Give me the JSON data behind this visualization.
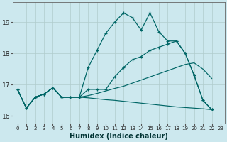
{
  "xlabel": "Humidex (Indice chaleur)",
  "background_color": "#cce8ee",
  "grid_color": "#b0cccc",
  "line_color": "#006666",
  "xlim": [
    -0.5,
    23.5
  ],
  "ylim": [
    15.75,
    19.65
  ],
  "yticks": [
    16,
    17,
    18,
    19
  ],
  "xticks": [
    0,
    1,
    2,
    3,
    4,
    5,
    6,
    7,
    8,
    9,
    10,
    11,
    12,
    13,
    14,
    15,
    16,
    17,
    18,
    19,
    20,
    21,
    22,
    23
  ],
  "s1": [
    16.85,
    16.25,
    16.6,
    16.7,
    16.9,
    16.6,
    16.6,
    16.6,
    17.55,
    18.1,
    18.65,
    19.0,
    19.3,
    19.15,
    18.75,
    19.3,
    18.7,
    18.4,
    18.4,
    18.0,
    17.3,
    16.5,
    16.2,
    null
  ],
  "s2": [
    16.85,
    16.25,
    16.6,
    16.7,
    16.9,
    16.6,
    16.6,
    16.6,
    16.85,
    16.85,
    16.85,
    17.25,
    17.55,
    17.8,
    17.9,
    18.1,
    18.2,
    18.3,
    18.4,
    18.0,
    17.3,
    16.5,
    16.2,
    null
  ],
  "s3": [
    16.85,
    16.25,
    16.6,
    16.7,
    16.9,
    16.6,
    16.6,
    16.6,
    16.65,
    16.72,
    16.8,
    16.88,
    16.95,
    17.05,
    17.15,
    17.25,
    17.35,
    17.45,
    17.55,
    17.65,
    17.7,
    17.5,
    17.2,
    null
  ],
  "s4": [
    16.85,
    16.25,
    16.6,
    16.7,
    16.9,
    16.6,
    16.6,
    16.6,
    16.58,
    16.55,
    16.52,
    16.5,
    16.47,
    16.44,
    16.41,
    16.38,
    16.35,
    16.32,
    16.29,
    16.27,
    16.25,
    16.23,
    16.2,
    null
  ]
}
